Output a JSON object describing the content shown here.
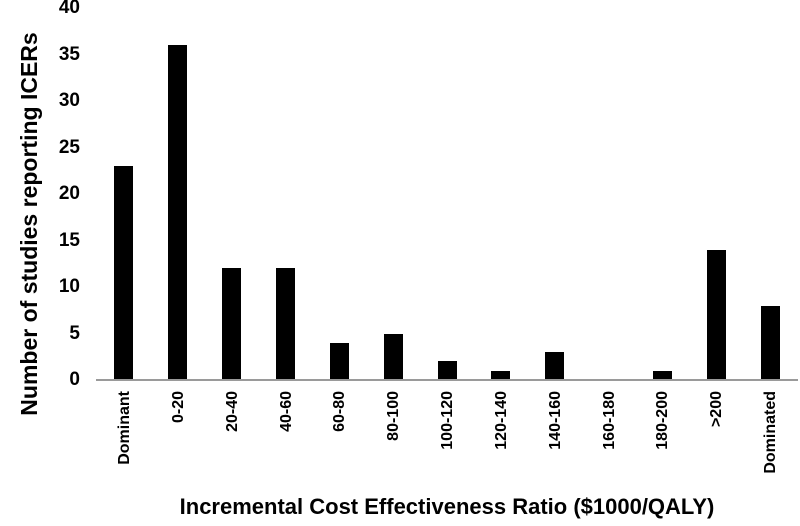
{
  "chart_data": {
    "type": "bar",
    "title": "",
    "xlabel": "Incremental Cost Effectiveness Ratio ($1000/QALY)",
    "ylabel": "Number of studies reporting ICERs",
    "categories": [
      "Dominant",
      "0-20",
      "20-40",
      "40-60",
      "60-80",
      "80-100",
      "100-120",
      "120-140",
      "140-160",
      "160-180",
      "180-200",
      ">200",
      "Dominated"
    ],
    "values": [
      23,
      36,
      12,
      12,
      4,
      5,
      2,
      1,
      3,
      0,
      1,
      14,
      8
    ],
    "ylim": [
      0,
      40
    ],
    "yticks": [
      0,
      5,
      10,
      15,
      20,
      25,
      30,
      35,
      40
    ],
    "grid": false,
    "legend_position": "none",
    "bar_color": "#000000",
    "axis_line_color": "#9a9a9a",
    "text_color": "#000000",
    "background_color": "#ffffff"
  }
}
